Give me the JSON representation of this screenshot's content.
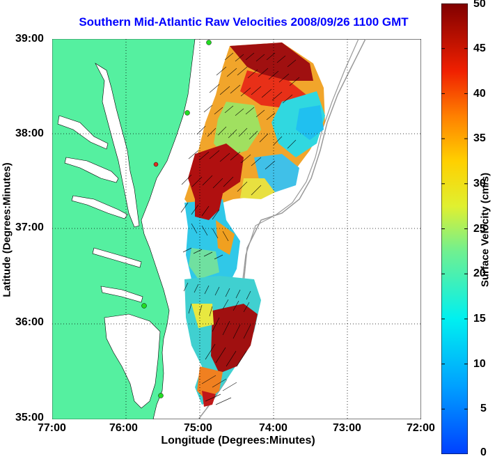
{
  "title": "Southern Mid-Atlantic Raw Velocities 2008/09/26 1100 GMT",
  "axes": {
    "xlabel": "Longitude (Degrees:Minutes)",
    "ylabel": "Latitude (Degrees:Minutes)",
    "xticks": [
      "77:00",
      "76:00",
      "75:00",
      "74:00",
      "73:00",
      "72:00"
    ],
    "yticks": [
      "39:00",
      "38:00",
      "37:00",
      "36:00",
      "35:00"
    ],
    "grid": "dotted"
  },
  "colorbar": {
    "label": "Surface Velocity (cm/s)",
    "ticks": [
      "50",
      "45",
      "40",
      "35",
      "30",
      "25",
      "20",
      "15",
      "10",
      "5",
      "0"
    ],
    "min": 0,
    "max": 50
  },
  "colors": {
    "land": "#55f0a0",
    "title": "#0000ff",
    "station": "#22dd22",
    "station_red": "#e03020"
  }
}
